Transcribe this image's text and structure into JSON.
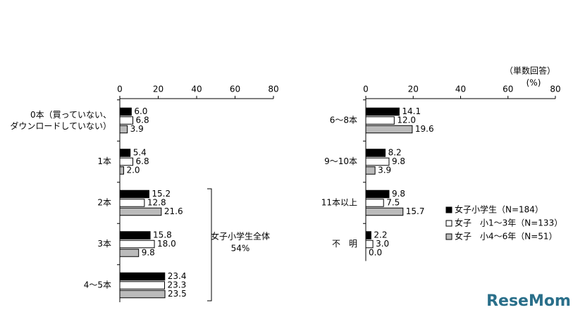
{
  "chart_data": [
    {
      "type": "hbar",
      "categories": [
        "0本（買っていない、\nダウンロードしていない）",
        "1本",
        "2本",
        "3本",
        "4～5本"
      ],
      "xlim": [
        0,
        80
      ],
      "xticks": [
        0,
        20,
        40,
        60,
        80
      ],
      "series": [
        {
          "name": "女子小学生（N=184）",
          "color": "#000000",
          "values": [
            6.0,
            5.4,
            15.2,
            15.8,
            23.4
          ],
          "value_labels": [
            "6.0",
            "5.4",
            "15.2",
            "15.8",
            "23.4"
          ]
        },
        {
          "name": "女子　小1～3年（N=133）",
          "color": "#ffffff",
          "values": [
            6.8,
            6.8,
            12.8,
            18.0,
            23.3
          ],
          "value_labels": [
            "6.8",
            "6.8",
            "12.8",
            "18.0",
            "23.3"
          ]
        },
        {
          "name": "女子　小4～6年（N=51）",
          "color": "#bbbbbb",
          "values": [
            3.9,
            2.0,
            21.6,
            9.8,
            23.5
          ],
          "value_labels": [
            "3.9",
            "2.0",
            "21.6",
            "9.8",
            "23.5"
          ]
        }
      ],
      "annotation": [
        "女子小学生全体",
        "54%"
      ]
    },
    {
      "type": "hbar",
      "categories": [
        "6～8本",
        "9～10本",
        "11本以上",
        "不　明"
      ],
      "xlim": [
        0,
        80
      ],
      "xticks": [
        0,
        20,
        40,
        60,
        80
      ],
      "unit_label": [
        "（単数回答）",
        "(%)"
      ],
      "legend": "lower right",
      "series": [
        {
          "name": "女子小学生（N=184）",
          "color": "#000000",
          "values": [
            14.1,
            8.2,
            9.8,
            2.2
          ],
          "value_labels": [
            "14.1",
            "8.2",
            "9.8",
            "2.2"
          ]
        },
        {
          "name": "女子　小1～3年（N=133）",
          "color": "#ffffff",
          "values": [
            12.0,
            9.8,
            7.5,
            3.0
          ],
          "value_labels": [
            "12.0",
            "9.8",
            "7.5",
            "3.0"
          ]
        },
        {
          "name": "女子　小4～6年（N=51）",
          "color": "#bbbbbb",
          "values": [
            19.6,
            3.9,
            15.7,
            0.0
          ],
          "value_labels": [
            "19.6",
            "3.9",
            "15.7",
            "0.0"
          ]
        }
      ]
    }
  ],
  "watermark": "ReseMom"
}
